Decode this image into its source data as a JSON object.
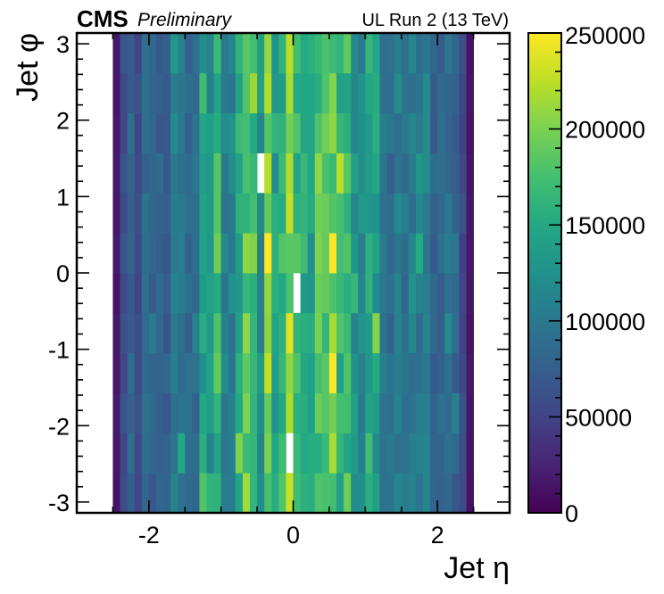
{
  "header": {
    "experiment": "CMS",
    "status": "Preliminary",
    "run_label": "UL Run 2 (13 TeV)"
  },
  "chart_data": {
    "type": "heatmap",
    "xlabel": "Jet η",
    "ylabel": "Jet φ",
    "xlim": [
      -3,
      3
    ],
    "ylim": [
      -3.14159,
      3.14159
    ],
    "x_ticks": [
      -2,
      0,
      2
    ],
    "y_ticks": [
      -3,
      -2,
      -1,
      0,
      1,
      2,
      3
    ],
    "x_tick_labels": [
      "-2",
      "0",
      "2"
    ],
    "y_tick_labels": [
      "-3",
      "-2",
      "-1",
      "0",
      "1",
      "2",
      "3"
    ],
    "x_bins": {
      "min": -2.5,
      "max": 2.5,
      "n": 50
    },
    "y_bins": {
      "min": -3.14159,
      "max": 3.14159,
      "n": 12
    },
    "colorbar": {
      "range": [
        0,
        250000
      ],
      "ticks": [
        0,
        50000,
        100000,
        150000,
        200000,
        250000
      ],
      "tick_labels": [
        "0",
        "50000",
        "100000",
        "150000",
        "200000",
        "250000"
      ],
      "colormap": "viridis"
    },
    "description": "Jet occupancy vs eta and phi; counts range roughly 10k at |eta|~2.5 to ~240k in hot bins near eta~0; two empty (white) bins near eta=-0.45, phi~1.5 and eta=0.05, phi~0; white bin near eta=-0.05, phi~-2.5",
    "empty_bins": [
      [
        20,
        8
      ],
      [
        25,
        5
      ],
      [
        24,
        1
      ]
    ]
  },
  "colors": {
    "axis": "#000000",
    "background": "#ffffff"
  }
}
